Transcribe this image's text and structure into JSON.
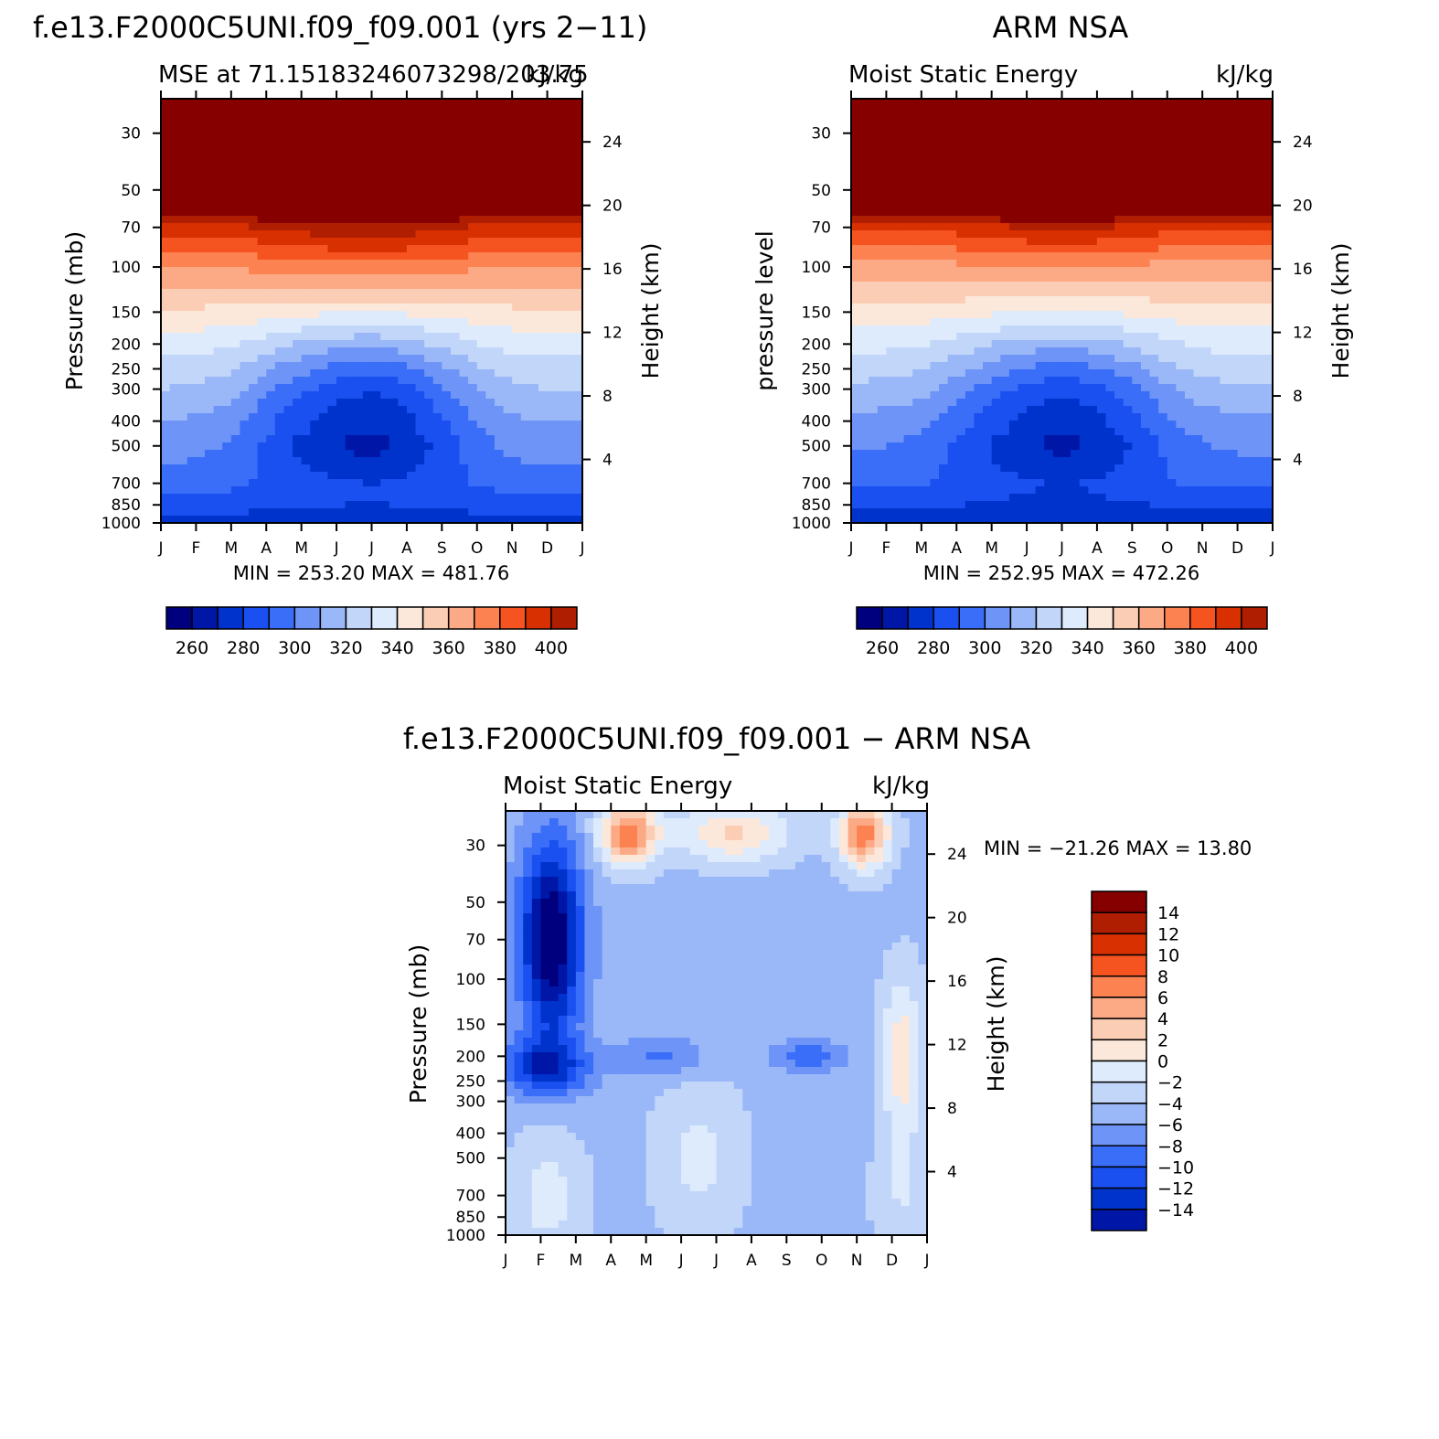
{
  "chart_data": [
    {
      "type": "heatmap",
      "id": "model",
      "title": "f.e13.F2000C5UNI.f09_f09.001 (yrs 2−11)",
      "subtitle_left": "MSE at 71.15183246073298/203.75",
      "subtitle_right": "kJ/kg",
      "ylabel": "Pressure (mb)",
      "ylabel_right": "Height (km)",
      "minmax_text": "MIN = 253.20  MAX = 481.76",
      "months": [
        "J",
        "F",
        "M",
        "A",
        "M",
        "J",
        "J",
        "A",
        "S",
        "O",
        "N",
        "D",
        "J"
      ],
      "pressure_ticks": [
        "30",
        "50",
        "70",
        "100",
        "150",
        "200",
        "250",
        "300",
        "400",
        "500",
        "700",
        "850",
        "1000"
      ],
      "height_ticks": [
        "24",
        "20",
        "16",
        "12",
        "8",
        "4"
      ],
      "colorbar_labels": [
        "260",
        "280",
        "300",
        "320",
        "340",
        "360",
        "380",
        "400"
      ],
      "levels_profile_jan": [
        [
          1000,
          265
        ],
        [
          850,
          275
        ],
        [
          700,
          285
        ],
        [
          500,
          295
        ],
        [
          400,
          300
        ],
        [
          300,
          310
        ],
        [
          250,
          316
        ],
        [
          200,
          325
        ],
        [
          150,
          338
        ],
        [
          100,
          360
        ],
        [
          70,
          385
        ],
        [
          50,
          430
        ],
        [
          30,
          470
        ]
      ],
      "contrast_by_month": [
        0,
        -2,
        -6,
        -18,
        -28,
        -36,
        -40,
        -34,
        -22,
        -10,
        -2,
        0,
        0
      ]
    },
    {
      "type": "heatmap",
      "id": "obs",
      "title": "ARM NSA",
      "subtitle_left": "Moist Static Energy",
      "subtitle_right": "kJ/kg",
      "ylabel": "pressure level",
      "ylabel_right": "Height (km)",
      "minmax_text": "MIN = 252.95  MAX = 472.26",
      "months": [
        "J",
        "F",
        "M",
        "A",
        "M",
        "J",
        "J",
        "A",
        "S",
        "O",
        "N",
        "D",
        "J"
      ],
      "pressure_ticks": [
        "30",
        "50",
        "70",
        "100",
        "150",
        "200",
        "250",
        "300",
        "400",
        "500",
        "700",
        "850",
        "1000"
      ],
      "height_ticks": [
        "24",
        "20",
        "16",
        "12",
        "8",
        "4"
      ],
      "colorbar_labels": [
        "260",
        "280",
        "300",
        "320",
        "340",
        "360",
        "380",
        "400"
      ],
      "levels_profile_jan": [
        [
          1000,
          262
        ],
        [
          850,
          272
        ],
        [
          700,
          283
        ],
        [
          500,
          292
        ],
        [
          400,
          298
        ],
        [
          300,
          308
        ],
        [
          250,
          315
        ],
        [
          200,
          324
        ],
        [
          150,
          336
        ],
        [
          100,
          355
        ],
        [
          70,
          380
        ],
        [
          50,
          430
        ],
        [
          30,
          470
        ]
      ],
      "contrast_by_month": [
        0,
        -2,
        -5,
        -14,
        -24,
        -32,
        -36,
        -32,
        -22,
        -10,
        -3,
        0,
        0
      ]
    },
    {
      "type": "heatmap",
      "id": "diff",
      "title": "f.e13.F2000C5UNI.f09_f09.001 − ARM NSA",
      "subtitle_left": "Moist Static Energy",
      "subtitle_right": "kJ/kg",
      "ylabel": "Pressure (mb)",
      "ylabel_right": "Height (km)",
      "minmax_text": "MIN = −21.26 MAX =   13.80",
      "months": [
        "J",
        "F",
        "M",
        "A",
        "M",
        "J",
        "J",
        "A",
        "S",
        "O",
        "N",
        "D",
        "J"
      ],
      "pressure_ticks": [
        "30",
        "50",
        "70",
        "100",
        "150",
        "200",
        "250",
        "300",
        "400",
        "500",
        "700",
        "850",
        "1000"
      ],
      "height_ticks": [
        "24",
        "20",
        "16",
        "12",
        "8",
        "4"
      ],
      "colorbar_labels": [
        "14",
        "12",
        "10",
        "8",
        "6",
        "4",
        "2",
        "0",
        "−2",
        "−4",
        "−6",
        "−8",
        "−10",
        "−12",
        "−14"
      ]
    }
  ],
  "colors": {
    "seq16": [
      "#00007f",
      "#0016a6",
      "#0033cc",
      "#1a4ff0",
      "#3a6ef8",
      "#6d94f6",
      "#9ab8f8",
      "#c2d6fa",
      "#ddebfc",
      "#fce8da",
      "#fccdb5",
      "#fcaa85",
      "#fc8252",
      "#f55320",
      "#d93002",
      "#b01e02",
      "#860000"
    ]
  }
}
